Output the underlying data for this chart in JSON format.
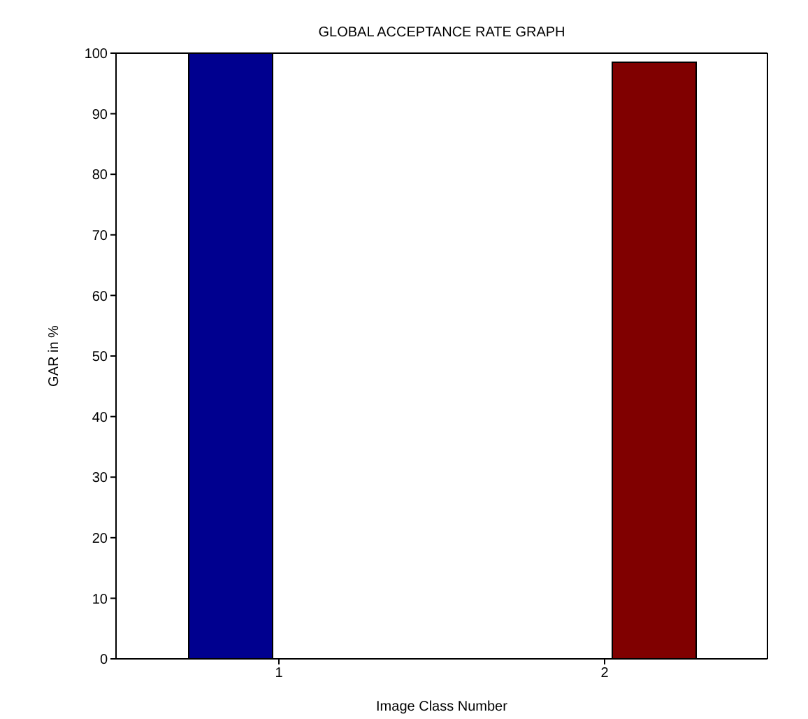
{
  "chart_data": {
    "type": "bar",
    "title": "GLOBAL ACCEPTANCE RATE GRAPH",
    "xlabel": "Image Class Number",
    "ylabel": "GAR in %",
    "categories": [
      "1",
      "2"
    ],
    "series": [
      {
        "color": "#00008f",
        "values": [
          100,
          null
        ]
      },
      {
        "color": "#800000",
        "values": [
          null,
          98.5
        ]
      }
    ],
    "ylim": [
      0,
      100
    ],
    "yticks": [
      0,
      10,
      20,
      30,
      40,
      50,
      60,
      70,
      80,
      90,
      100
    ],
    "grid": false,
    "legend": false
  }
}
